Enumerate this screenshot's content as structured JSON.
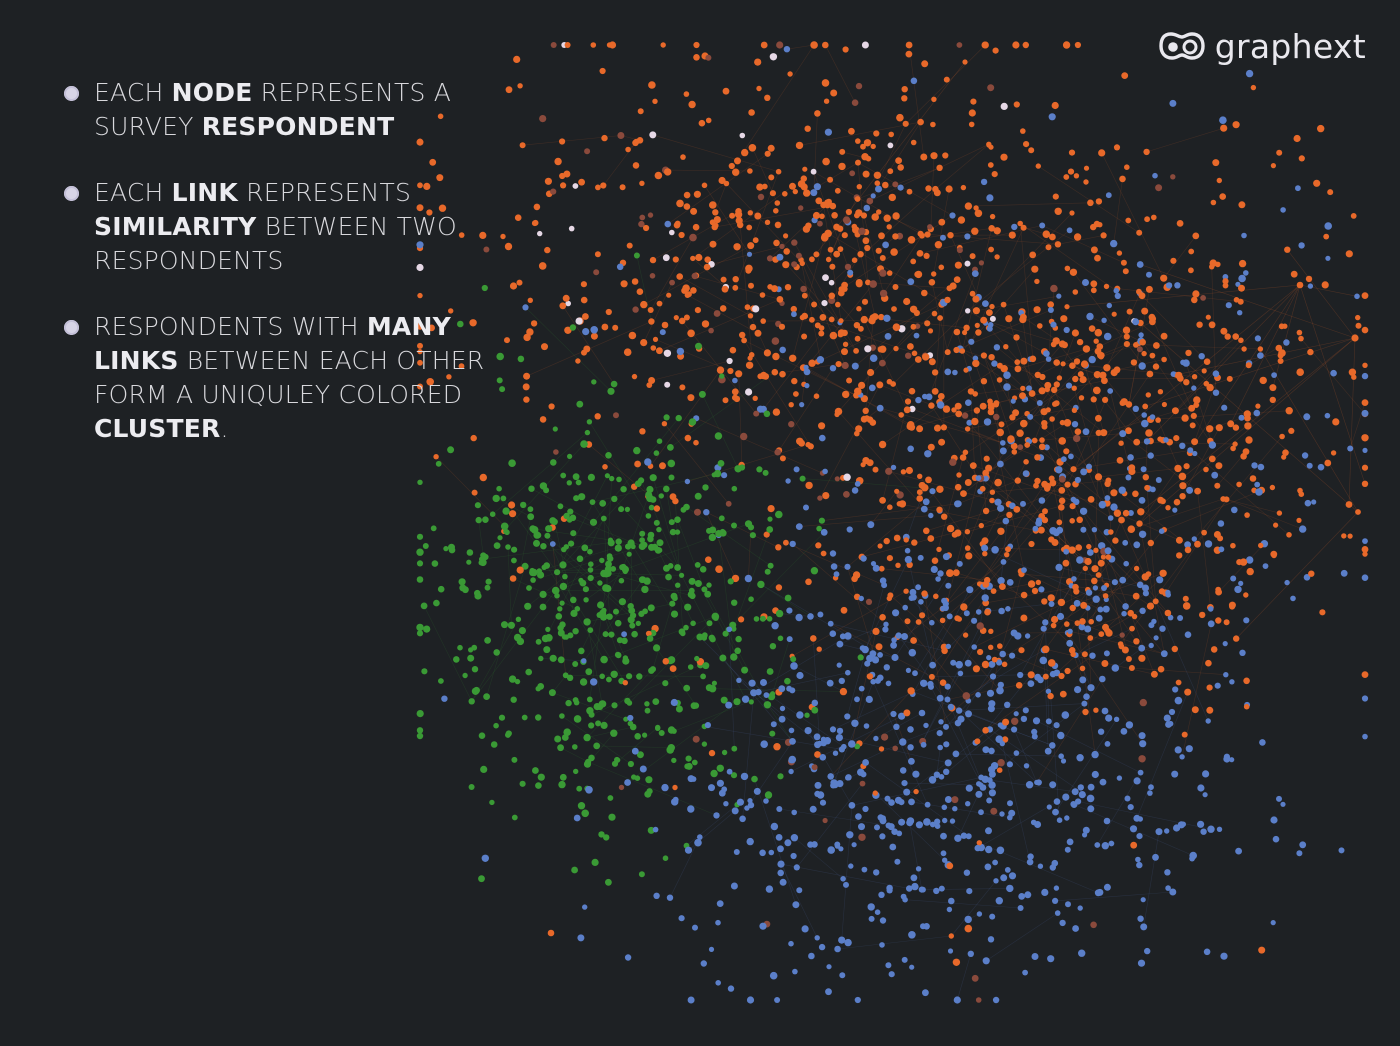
{
  "brand": {
    "name": "graphext",
    "logo_icon": "graphext-logo-icon"
  },
  "legend": {
    "items": [
      {
        "text": "EACH **NODE** REPRESENTS A SURVEY **RESPONDENT**"
      },
      {
        "text": "EACH **LINK** REPRESENTS **SIMILARITY** BETWEEN TWO RESPONDENTS"
      },
      {
        "text": "RESPONDENTS WITH **MANY LINKS** BETWEEN EACH OTHER FORM  A UNIQULEY COLORED **CLUSTER**."
      }
    ]
  },
  "colors": {
    "background": "#1e2124",
    "text": "#d8d8dc",
    "bullet": "#d7d4e6",
    "cluster_orange": "#e8692a",
    "cluster_blue": "#5b7fc9",
    "cluster_green": "#3a9a35",
    "cluster_brown": "#8a4a3c",
    "cluster_pale": "#e6d8e6"
  }
}
